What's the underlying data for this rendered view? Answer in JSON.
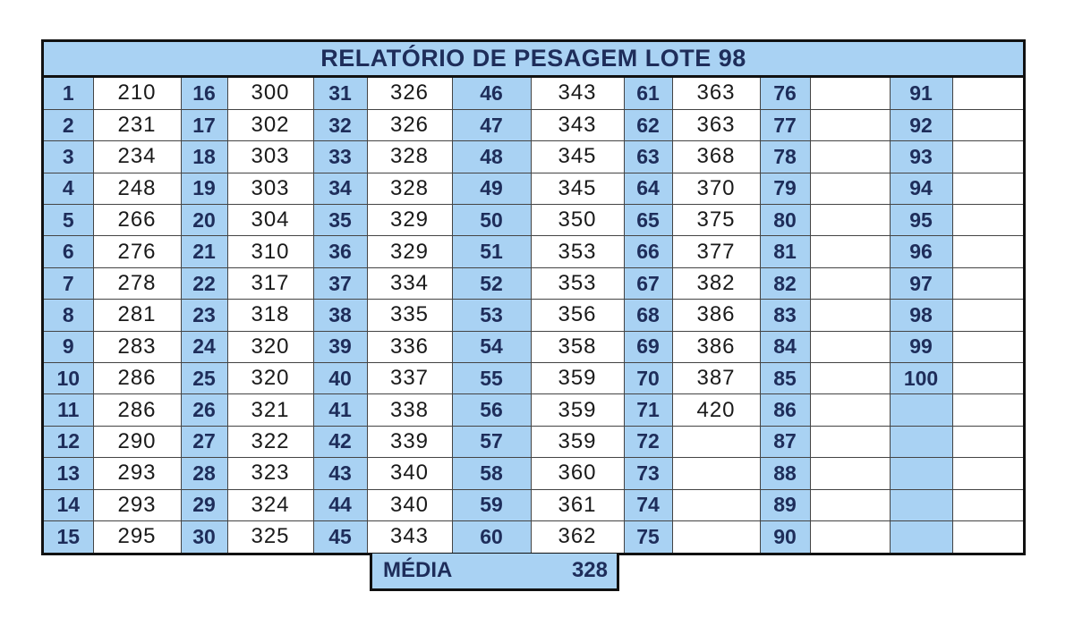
{
  "title": "RELATÓRIO DE PESAGEM LOTE  98",
  "columns": [
    {
      "numbers": [
        "1",
        "2",
        "3",
        "4",
        "5",
        "6",
        "7",
        "8",
        "9",
        "10",
        "11",
        "12",
        "13",
        "14",
        "15"
      ],
      "weights": [
        "210",
        "231",
        "234",
        "248",
        "266",
        "276",
        "278",
        "281",
        "283",
        "286",
        "286",
        "290",
        "293",
        "293",
        "295"
      ]
    },
    {
      "numbers": [
        "16",
        "17",
        "18",
        "19",
        "20",
        "21",
        "22",
        "23",
        "24",
        "25",
        "26",
        "27",
        "28",
        "29",
        "30"
      ],
      "weights": [
        "300",
        "302",
        "303",
        "303",
        "304",
        "310",
        "317",
        "318",
        "320",
        "320",
        "321",
        "322",
        "323",
        "324",
        "325"
      ]
    },
    {
      "numbers": [
        "31",
        "32",
        "33",
        "34",
        "35",
        "36",
        "37",
        "38",
        "39",
        "40",
        "41",
        "42",
        "43",
        "44",
        "45"
      ],
      "weights": [
        "326",
        "326",
        "328",
        "328",
        "329",
        "329",
        "334",
        "335",
        "336",
        "337",
        "338",
        "339",
        "340",
        "340",
        "343"
      ]
    },
    {
      "numbers": [
        "46",
        "47",
        "48",
        "49",
        "50",
        "51",
        "52",
        "53",
        "54",
        "55",
        "56",
        "57",
        "58",
        "59",
        "60"
      ],
      "weights": [
        "343",
        "343",
        "345",
        "345",
        "350",
        "353",
        "353",
        "356",
        "358",
        "359",
        "359",
        "359",
        "360",
        "361",
        "362"
      ]
    },
    {
      "numbers": [
        "61",
        "62",
        "63",
        "64",
        "65",
        "66",
        "67",
        "68",
        "69",
        "70",
        "71",
        "72",
        "73",
        "74",
        "75"
      ],
      "weights": [
        "363",
        "363",
        "368",
        "370",
        "375",
        "377",
        "382",
        "386",
        "386",
        "387",
        "420",
        "",
        "",
        "",
        ""
      ]
    },
    {
      "numbers": [
        "76",
        "77",
        "78",
        "79",
        "80",
        "81",
        "82",
        "83",
        "84",
        "85",
        "86",
        "87",
        "88",
        "89",
        "90"
      ],
      "weights": [
        "",
        "",
        "",
        "",
        "",
        "",
        "",
        "",
        "",
        "",
        "",
        "",
        "",
        "",
        ""
      ]
    },
    {
      "numbers": [
        "91",
        "92",
        "93",
        "94",
        "95",
        "96",
        "97",
        "98",
        "99",
        "100",
        "",
        "",
        "",
        "",
        ""
      ],
      "weights": [
        "",
        "",
        "",
        "",
        "",
        "",
        "",
        "",
        "",
        "",
        "",
        "",
        "",
        "",
        ""
      ]
    }
  ],
  "summary": {
    "label": "MÉDIA",
    "value": "328"
  },
  "colors": {
    "header_fill": "#a9d2f3",
    "number_text": "#1e2d5a",
    "border": "#111111"
  }
}
